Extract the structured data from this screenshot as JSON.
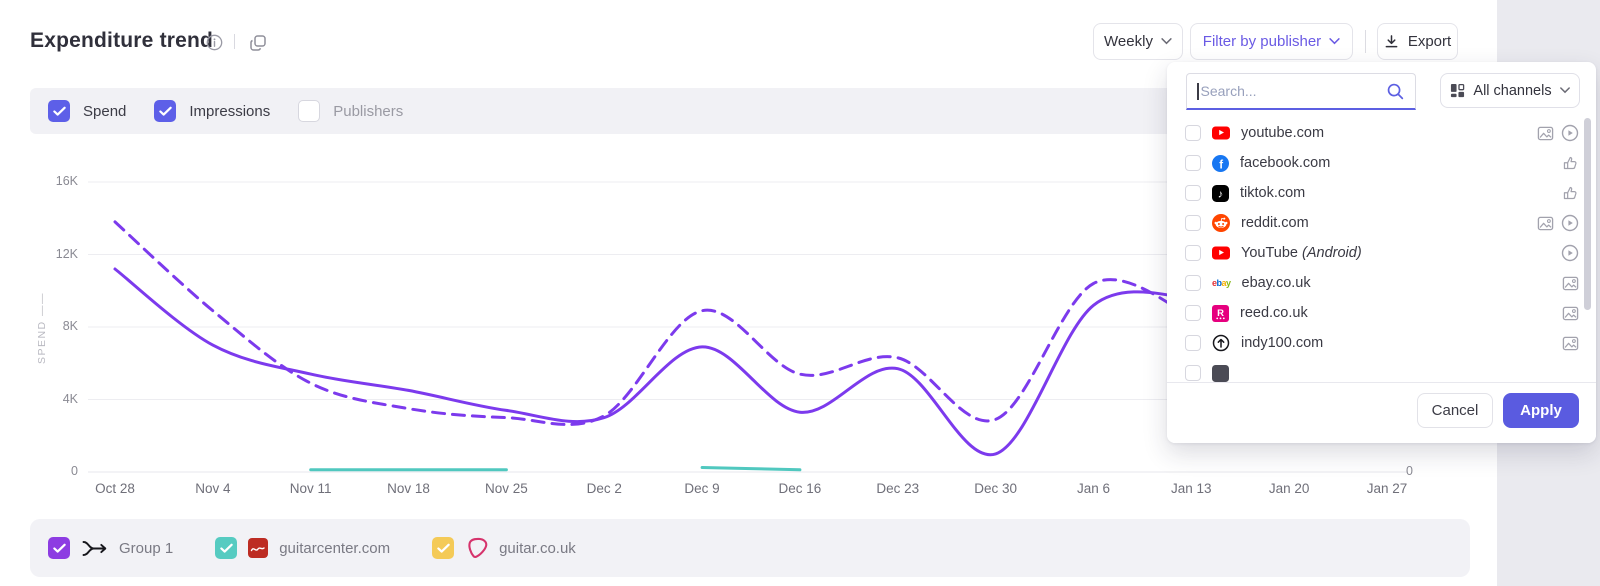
{
  "header": {
    "title": "Expenditure trend",
    "period_button": "Weekly",
    "filter_button": "Filter by publisher",
    "export_button": "Export"
  },
  "toggles": [
    {
      "label": "Spend",
      "checked": true
    },
    {
      "label": "Impressions",
      "checked": true
    },
    {
      "label": "Publishers",
      "checked": false
    }
  ],
  "panel": {
    "search_placeholder": "Search...",
    "channels_button": "All channels",
    "publishers": [
      {
        "name": "youtube.com",
        "suffix": "",
        "brand": "youtube",
        "icons": [
          "display",
          "video"
        ]
      },
      {
        "name": "facebook.com",
        "suffix": "",
        "brand": "facebook",
        "icons": [
          "social"
        ]
      },
      {
        "name": "tiktok.com",
        "suffix": "",
        "brand": "tiktok",
        "icons": [
          "social"
        ]
      },
      {
        "name": "reddit.com",
        "suffix": "",
        "brand": "reddit",
        "icons": [
          "display",
          "video"
        ]
      },
      {
        "name": "YouTube",
        "suffix": " (Android)",
        "brand": "youtube",
        "icons": [
          "video"
        ]
      },
      {
        "name": "ebay.co.uk",
        "suffix": "",
        "brand": "ebay",
        "icons": [
          "display"
        ]
      },
      {
        "name": "reed.co.uk",
        "suffix": "",
        "brand": "reed",
        "icons": [
          "display"
        ]
      },
      {
        "name": "indy100.com",
        "suffix": "",
        "brand": "indy",
        "icons": [
          "display"
        ]
      },
      {
        "name": "",
        "suffix": "",
        "brand": "unknown",
        "icons": []
      }
    ],
    "cancel_label": "Cancel",
    "apply_label": "Apply"
  },
  "chart_data": {
    "type": "line",
    "title": "Expenditure trend",
    "ylabel": "SPEND",
    "ylabel_suffix_dashes": "——",
    "ylim": [
      0,
      16000
    ],
    "yticks": [
      "0",
      "4K",
      "8K",
      "12K",
      "16K"
    ],
    "right_axis_visible_ticks": [
      "0"
    ],
    "grid": true,
    "legend_position": "bottom",
    "categories": [
      "Oct 28",
      "Nov 4",
      "Nov 11",
      "Nov 18",
      "Nov 25",
      "Dec 2",
      "Dec 9",
      "Dec 16",
      "Dec 23",
      "Dec 30",
      "Jan 6",
      "Jan 13",
      "Jan 20",
      "Jan 27"
    ],
    "series": [
      {
        "name": "Group 1 — Spend",
        "style": "solid",
        "color": "#7c3aed",
        "axis": "left",
        "values": [
          11200,
          7000,
          5400,
          4500,
          3400,
          3000,
          6900,
          3300,
          5700,
          1000,
          9200,
          9600,
          null,
          null
        ]
      },
      {
        "name": "Group 1 — Impressions",
        "style": "dashed",
        "color": "#7c3aed",
        "axis": "right",
        "values": [
          13800,
          8900,
          4900,
          3500,
          3000,
          3100,
          8900,
          5400,
          6300,
          2900,
          10400,
          8600,
          null,
          null
        ]
      },
      {
        "name": "guitarcenter.com — Spend",
        "style": "solid",
        "color": "#50c8bf",
        "axis": "left",
        "values": [
          null,
          null,
          120,
          120,
          120,
          null,
          250,
          120,
          null,
          null,
          null,
          null,
          null,
          null
        ]
      }
    ]
  },
  "legend": [
    {
      "label": "Group 1",
      "checkbox_color": "#8d3ce2",
      "icon": "merge"
    },
    {
      "label": "guitarcenter.com",
      "checkbox_color": "#56cbc1",
      "icon": "guitarcenter"
    },
    {
      "label": "guitar.co.uk",
      "checkbox_color": "#f4ca57",
      "icon": "guitar-pick"
    }
  ],
  "colors": {
    "accent_indigo": "#5d5fe8",
    "filter_purple": "#6a5ae4",
    "chart_purple": "#7c3aed",
    "chart_teal": "#50c8bf",
    "apply_button": "#5a5be0"
  }
}
